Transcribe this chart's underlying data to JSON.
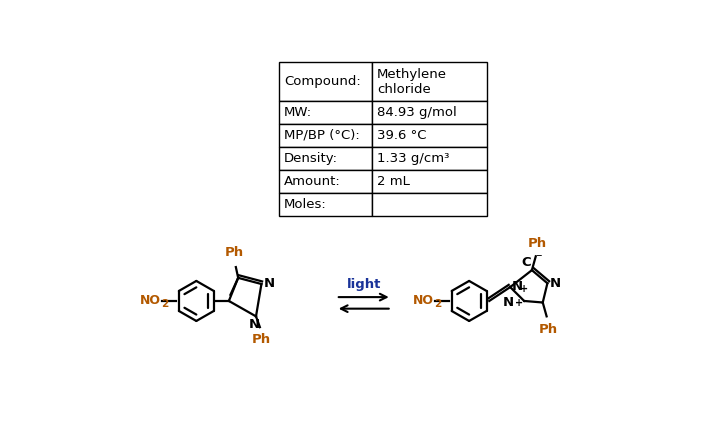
{
  "bg_color": "#ffffff",
  "table_data": [
    [
      "Compound:",
      "Methylene\nchloride"
    ],
    [
      "MW:",
      "84.93 g/mol"
    ],
    [
      "MP/BP (°C):",
      "39.6 °C"
    ],
    [
      "Density:",
      "1.33 g/cm³"
    ],
    [
      "Amount:",
      "2 mL"
    ],
    [
      "Moles:",
      ""
    ]
  ],
  "table_fontsize": 9.5,
  "label_color": "#000000",
  "ph_color": "#b35900",
  "no2_color": "#b35900",
  "light_color": "#1a3399",
  "light_text": "light",
  "light_fontsize": 9.5
}
